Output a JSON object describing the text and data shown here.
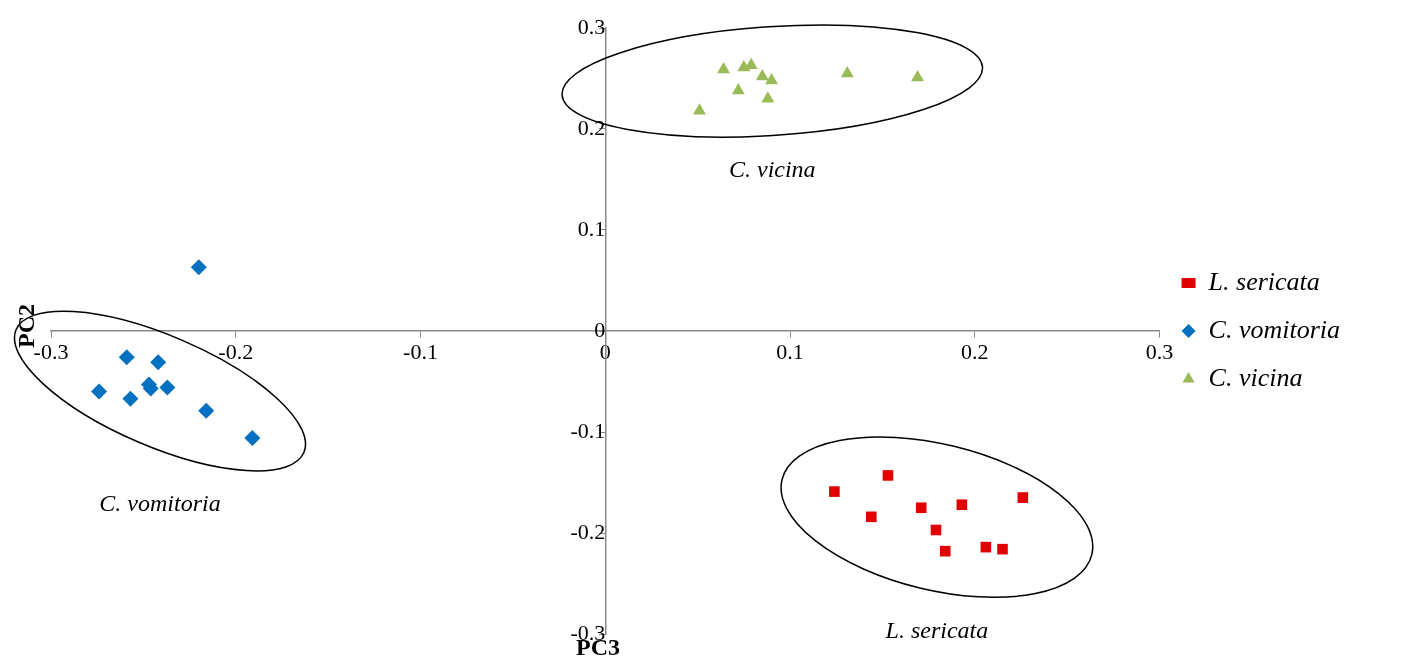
{
  "chart_data": {
    "type": "scatter",
    "xlabel": "PC3",
    "ylabel": "PC2",
    "xlim": [
      -0.3,
      0.3
    ],
    "ylim": [
      -0.3,
      0.3
    ],
    "xticks": [
      -0.3,
      -0.2,
      -0.1,
      0,
      0.1,
      0.2,
      0.3
    ],
    "yticks": [
      -0.3,
      -0.2,
      -0.1,
      0,
      0.1,
      0.2,
      0.3
    ],
    "grid": false,
    "legend": "right",
    "series": [
      {
        "name": "L. sericata",
        "color": "#e00000",
        "marker": "square",
        "x": [
          0.124,
          0.153,
          0.144,
          0.171,
          0.193,
          0.226,
          0.179,
          0.184,
          0.206,
          0.215
        ],
        "values": [
          -0.159,
          -0.143,
          -0.184,
          -0.175,
          -0.172,
          -0.165,
          -0.197,
          -0.218,
          -0.214,
          -0.216
        ]
      },
      {
        "name": "C. vomitoria",
        "color": "#0070c0",
        "marker": "diamond",
        "x": [
          -0.22,
          -0.259,
          -0.242,
          -0.274,
          -0.257,
          -0.247,
          -0.246,
          -0.237,
          -0.216,
          -0.191
        ],
        "values": [
          0.063,
          -0.026,
          -0.031,
          -0.06,
          -0.067,
          -0.053,
          -0.057,
          -0.056,
          -0.079,
          -0.106
        ]
      },
      {
        "name": "C. vicina",
        "color": "#9bbb59",
        "marker": "triangle",
        "x": [
          0.064,
          0.075,
          0.079,
          0.085,
          0.09,
          0.072,
          0.088,
          0.051,
          0.131,
          0.169
        ],
        "values": [
          0.259,
          0.261,
          0.263,
          0.252,
          0.248,
          0.238,
          0.23,
          0.218,
          0.255,
          0.251
        ]
      }
    ],
    "annotations": [
      "L. sericata",
      "C. vomitoria",
      "C. vicina"
    ]
  }
}
